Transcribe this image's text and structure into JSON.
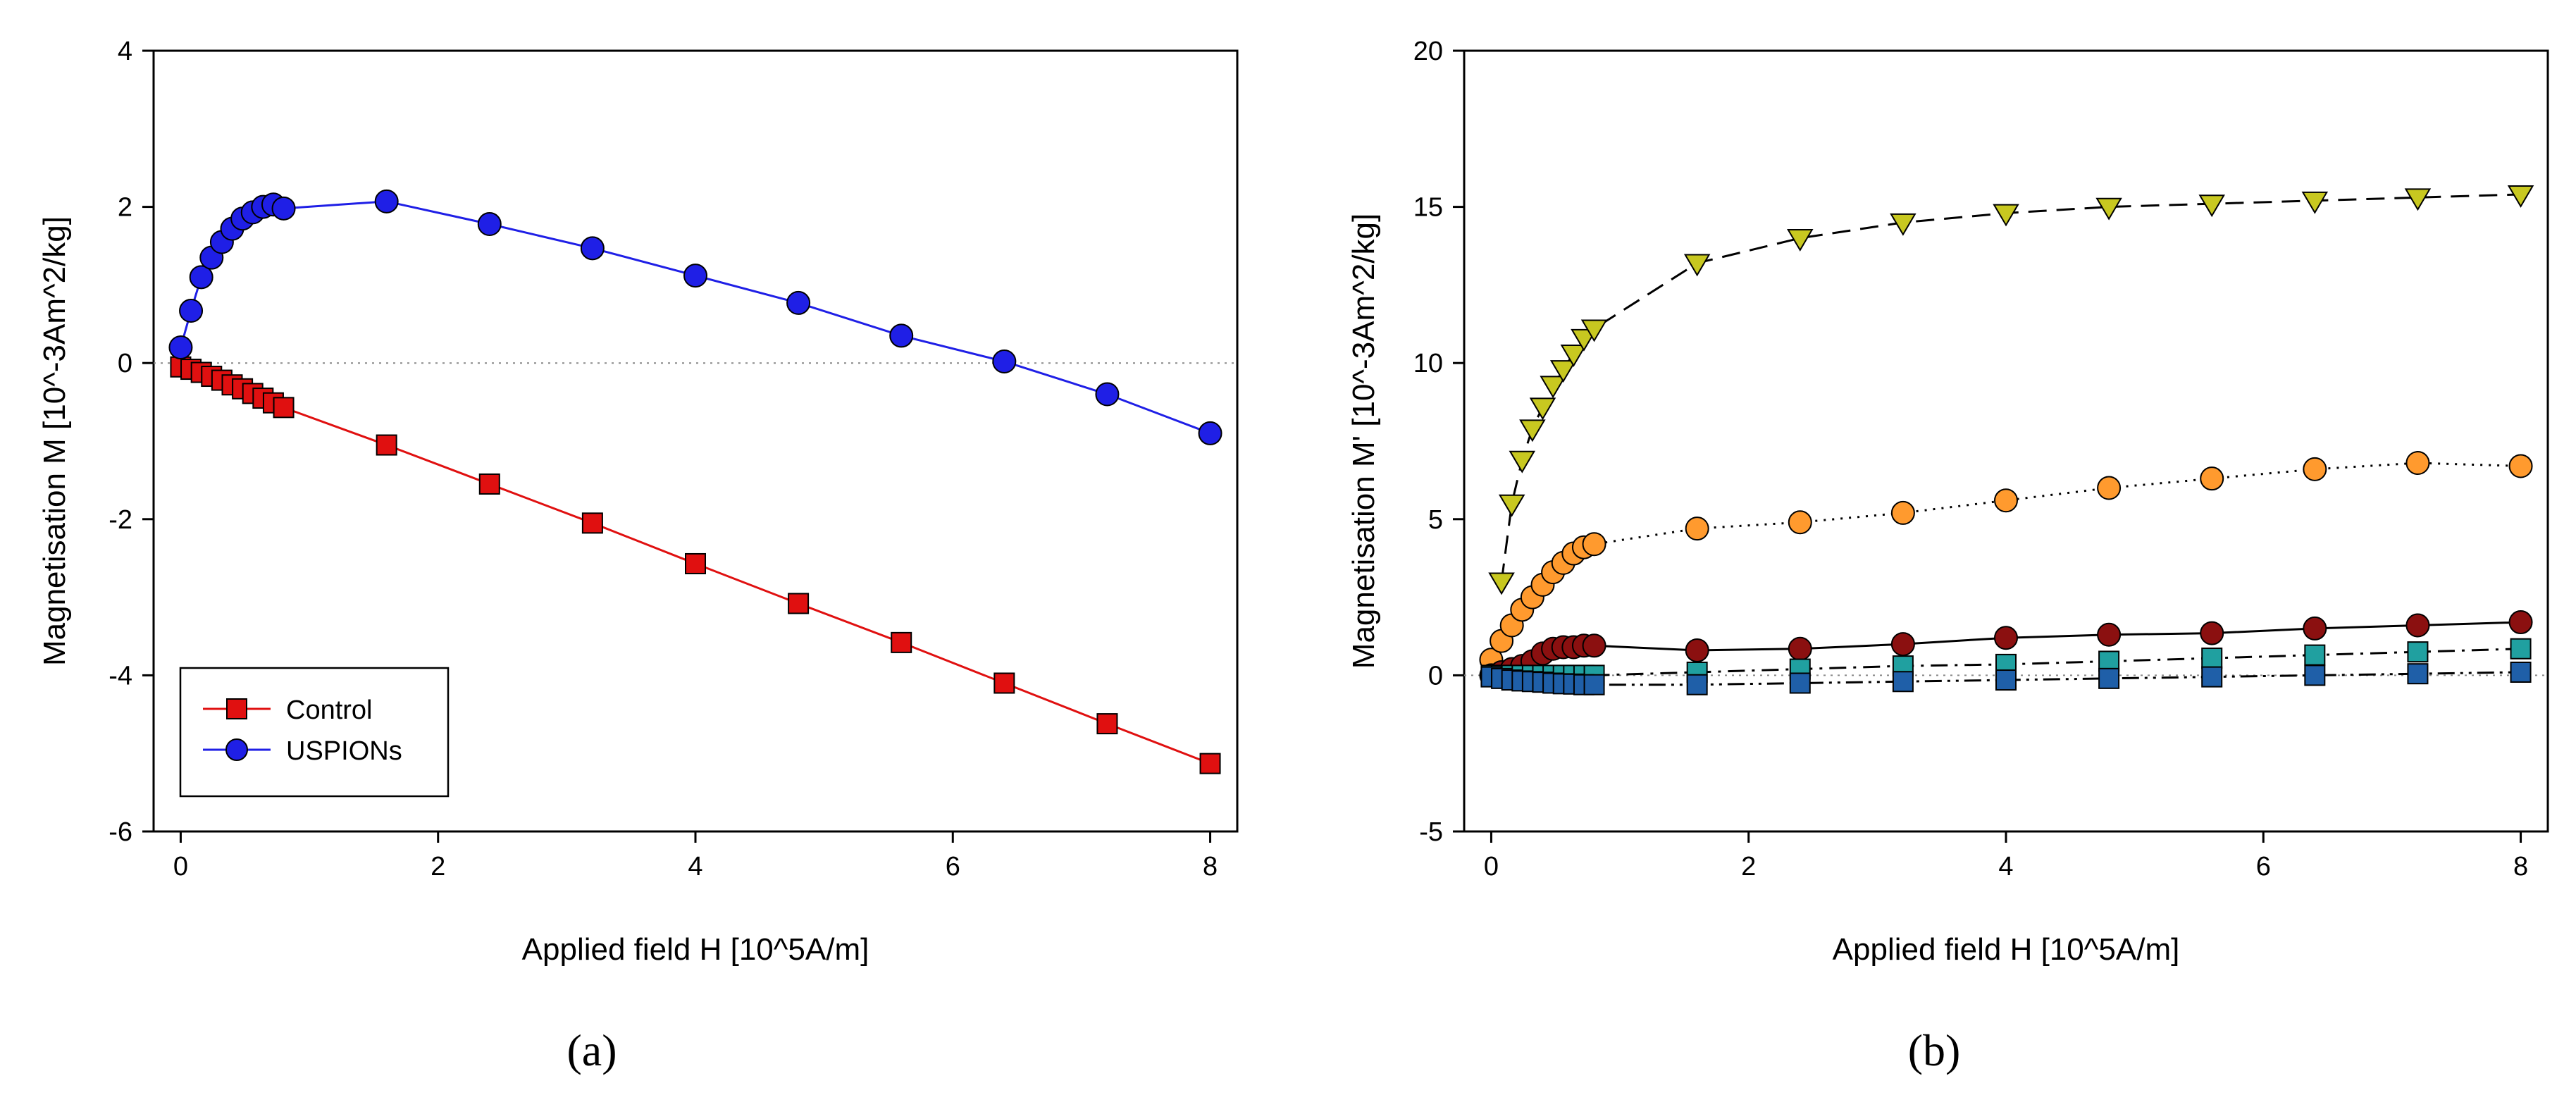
{
  "chart_data": [
    {
      "type": "line",
      "panel_label": "(a)",
      "xlabel": "Applied field H [10^5A/m]",
      "ylabel": "Magnetisation M [10^-3Am^2/kg]",
      "xlim": [
        0,
        8
      ],
      "ylim": [
        -6,
        4
      ],
      "xticks": [
        "0",
        "2",
        "4",
        "6",
        "8"
      ],
      "yticks": [
        "-6",
        "-4",
        "-2",
        "0",
        "2",
        "4"
      ],
      "zero_line": true,
      "legend_position": "bottom-left",
      "series": [
        {
          "name": "Control",
          "color": "#e01010",
          "line_color": "#e01010",
          "marker": "square",
          "x": [
            0,
            0.08,
            0.16,
            0.24,
            0.32,
            0.4,
            0.48,
            0.56,
            0.64,
            0.72,
            0.8,
            1.6,
            2.4,
            3.2,
            4.0,
            4.8,
            5.6,
            6.4,
            7.2,
            8.0
          ],
          "y": [
            -0.05,
            -0.08,
            -0.12,
            -0.17,
            -0.22,
            -0.28,
            -0.33,
            -0.39,
            -0.45,
            -0.51,
            -0.57,
            -1.05,
            -1.55,
            -2.05,
            -2.57,
            -3.08,
            -3.58,
            -4.1,
            -4.62,
            -5.13
          ]
        },
        {
          "name": "USPIONs",
          "color": "#1f1fe6",
          "line_color": "#1f1fe6",
          "marker": "circle",
          "x": [
            0,
            0.08,
            0.16,
            0.24,
            0.32,
            0.4,
            0.48,
            0.56,
            0.64,
            0.72,
            0.8,
            1.6,
            2.4,
            3.2,
            4.0,
            4.8,
            5.6,
            6.4,
            7.2,
            8.0
          ],
          "y": [
            0.2,
            0.67,
            1.1,
            1.35,
            1.55,
            1.72,
            1.85,
            1.93,
            2.0,
            2.03,
            1.98,
            2.07,
            1.78,
            1.47,
            1.12,
            0.77,
            0.35,
            0.02,
            -0.4,
            -0.9
          ]
        }
      ]
    },
    {
      "type": "line",
      "panel_label": "(b)",
      "xlabel": "Applied field H [10^5A/m]",
      "ylabel": "Magnetisation M' [10^-3Am^2/kg]",
      "xlim": [
        0,
        8
      ],
      "ylim": [
        -5,
        20
      ],
      "xticks": [
        "0",
        "2",
        "4",
        "6",
        "8"
      ],
      "yticks": [
        "-5",
        "0",
        "5",
        "10",
        "15",
        "20"
      ],
      "zero_line": true,
      "series": [
        {
          "name": "yellow-triangles",
          "color": "#c8c820",
          "line_color": "#000000",
          "dash": "long",
          "marker": "triangle-down",
          "x": [
            0.08,
            0.16,
            0.24,
            0.32,
            0.4,
            0.48,
            0.56,
            0.64,
            0.72,
            0.8,
            1.6,
            2.4,
            3.2,
            4.0,
            4.8,
            5.6,
            6.4,
            7.2,
            8.0
          ],
          "y": [
            3.0,
            5.5,
            6.9,
            7.9,
            8.6,
            9.3,
            9.8,
            10.3,
            10.8,
            11.1,
            13.2,
            14.0,
            14.5,
            14.8,
            15.0,
            15.1,
            15.2,
            15.3,
            15.4
          ]
        },
        {
          "name": "orange-circles",
          "color": "#ff9a2e",
          "line_color": "#000000",
          "dash": "dot",
          "marker": "circle",
          "x": [
            0,
            0.08,
            0.16,
            0.24,
            0.32,
            0.4,
            0.48,
            0.56,
            0.64,
            0.72,
            0.8,
            1.6,
            2.4,
            3.2,
            4.0,
            4.8,
            5.6,
            6.4,
            7.2,
            8.0
          ],
          "y": [
            0.5,
            1.1,
            1.6,
            2.1,
            2.5,
            2.9,
            3.3,
            3.6,
            3.9,
            4.1,
            4.2,
            4.7,
            4.9,
            5.2,
            5.6,
            6.0,
            6.3,
            6.6,
            6.8,
            6.7
          ]
        },
        {
          "name": "darkred-circles",
          "color": "#8b1010",
          "line_color": "#000000",
          "dash": "solid",
          "marker": "circle",
          "x": [
            0,
            0.08,
            0.16,
            0.24,
            0.32,
            0.4,
            0.48,
            0.56,
            0.64,
            0.72,
            0.8,
            1.6,
            2.4,
            3.2,
            4.0,
            4.8,
            5.6,
            6.4,
            7.2,
            8.0
          ],
          "y": [
            0.0,
            0.1,
            0.2,
            0.3,
            0.45,
            0.7,
            0.85,
            0.9,
            0.9,
            0.95,
            0.95,
            0.8,
            0.85,
            1.0,
            1.2,
            1.3,
            1.35,
            1.5,
            1.6,
            1.7
          ]
        },
        {
          "name": "teal-squares",
          "color": "#20a0a0",
          "line_color": "#000000",
          "dash": "dashdot",
          "marker": "square",
          "x": [
            0,
            0.08,
            0.16,
            0.24,
            0.32,
            0.4,
            0.48,
            0.56,
            0.64,
            0.72,
            0.8,
            1.6,
            2.4,
            3.2,
            4.0,
            4.8,
            5.6,
            6.4,
            7.2,
            8.0
          ],
          "y": [
            0.0,
            0.0,
            0.0,
            0.0,
            0.0,
            0.0,
            0.0,
            0.0,
            0.0,
            0.0,
            0.0,
            0.1,
            0.2,
            0.3,
            0.35,
            0.45,
            0.55,
            0.65,
            0.75,
            0.85
          ]
        },
        {
          "name": "blue-squares",
          "color": "#1f5fa8",
          "line_color": "#000000",
          "dash": "dashdotdot",
          "marker": "square",
          "x": [
            0,
            0.08,
            0.16,
            0.24,
            0.32,
            0.4,
            0.48,
            0.56,
            0.64,
            0.72,
            0.8,
            1.6,
            2.4,
            3.2,
            4.0,
            4.8,
            5.6,
            6.4,
            7.2,
            8.0
          ],
          "y": [
            -0.05,
            -0.1,
            -0.15,
            -0.18,
            -0.2,
            -0.22,
            -0.25,
            -0.27,
            -0.28,
            -0.3,
            -0.3,
            -0.3,
            -0.25,
            -0.2,
            -0.15,
            -0.1,
            -0.05,
            0.0,
            0.05,
            0.1
          ]
        }
      ]
    }
  ]
}
